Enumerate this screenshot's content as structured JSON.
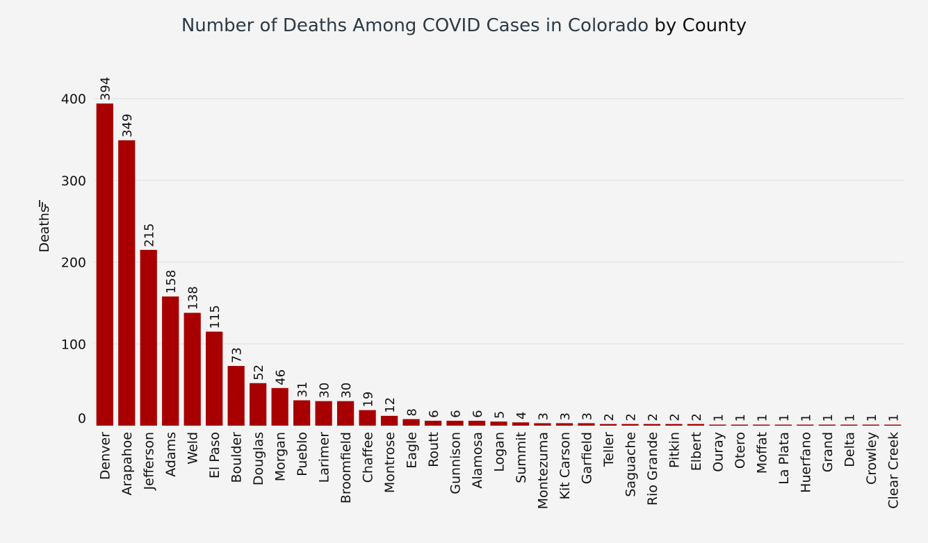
{
  "title": {
    "main": "Number of Deaths Among COVID Cases in Colorado",
    "suffix": "by County"
  },
  "chart_data": {
    "type": "bar",
    "title": "Number of Deaths Among COVID Cases in Colorado by County",
    "ylabel": "Deaths",
    "xlabel": "",
    "ylim": [
      0,
      400
    ],
    "yticks": [
      0,
      100,
      200,
      300,
      400
    ],
    "grid": true,
    "bar_color": "#a80000",
    "categories": [
      "Denver",
      "Arapahoe",
      "Jefferson",
      "Adams",
      "Weld",
      "El Paso",
      "Boulder",
      "Douglas",
      "Morgan",
      "Pueblo",
      "Larimer",
      "Broomfield",
      "Chaffee",
      "Montrose",
      "Eagle",
      "Routt",
      "Gunnison",
      "Alamosa",
      "Logan",
      "Summit",
      "Montezuma",
      "Kit Carson",
      "Garfield",
      "Teller",
      "Saguache",
      "Rio Grande",
      "Pitkin",
      "Elbert",
      "Ouray",
      "Otero",
      "Moffat",
      "La Plata",
      "Huerfano",
      "Grand",
      "Delta",
      "Crowley",
      "Clear Creek"
    ],
    "values": [
      394,
      349,
      215,
      158,
      138,
      115,
      73,
      52,
      46,
      31,
      30,
      30,
      19,
      12,
      8,
      6,
      6,
      6,
      5,
      4,
      3,
      3,
      3,
      2,
      2,
      2,
      2,
      2,
      1,
      1,
      1,
      1,
      1,
      1,
      1,
      1,
      1
    ]
  }
}
